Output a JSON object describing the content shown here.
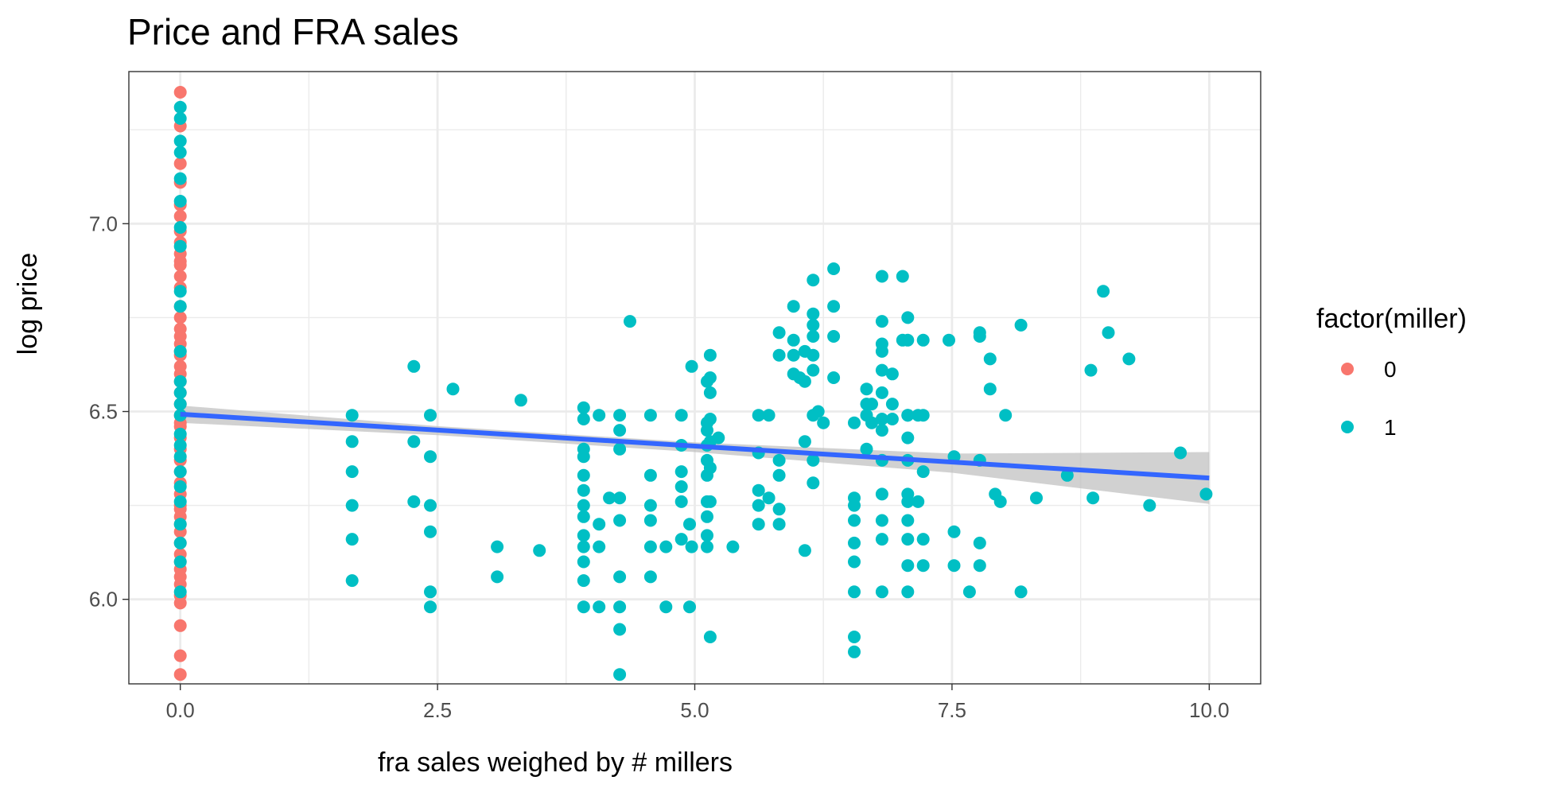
{
  "chart_data": {
    "type": "scatter",
    "title": "Price and FRA sales",
    "xlabel": "fra sales weighed by # millers",
    "ylabel": "log price",
    "xlim": [
      -0.5,
      10.5
    ],
    "ylim": [
      5.775,
      7.405
    ],
    "x_ticks": [
      0.0,
      2.5,
      5.0,
      7.5,
      10.0
    ],
    "x_tick_labels": [
      "0.0",
      "2.5",
      "5.0",
      "7.5",
      "10.0"
    ],
    "y_ticks": [
      6.0,
      6.5,
      7.0
    ],
    "y_tick_labels": [
      "6.0",
      "6.5",
      "7.0"
    ],
    "grid": true,
    "legend": {
      "title": "factor(miller)",
      "position": "right",
      "entries": [
        {
          "label": "0",
          "color": "#F8766D"
        },
        {
          "label": "1",
          "color": "#00BFC4"
        }
      ]
    },
    "colors": {
      "miller_0": "#F8766D",
      "miller_1": "#00BFC4",
      "fit_line": "#3366FF",
      "confidence_band": "#BEBEBE"
    },
    "series": [
      {
        "name": "0",
        "x": [
          0,
          0,
          0,
          0,
          0,
          0,
          0,
          0,
          0,
          0,
          0,
          0,
          0,
          0,
          0,
          0,
          0,
          0,
          0,
          0,
          0,
          0,
          0,
          0,
          0,
          0,
          0,
          0,
          0,
          0,
          0,
          0,
          0,
          0,
          0,
          0,
          0,
          0,
          0,
          0,
          0,
          0,
          0,
          0,
          0,
          0,
          0,
          0,
          0,
          0
        ],
        "y": [
          7.35,
          7.26,
          7.16,
          7.11,
          7.05,
          7.02,
          6.98,
          6.95,
          6.92,
          6.89,
          6.86,
          6.83,
          6.78,
          6.75,
          6.72,
          6.7,
          6.68,
          6.65,
          6.62,
          6.6,
          6.58,
          6.55,
          6.52,
          6.49,
          6.46,
          6.43,
          6.4,
          6.37,
          6.34,
          6.31,
          6.28,
          6.25,
          6.22,
          6.2,
          6.18,
          6.15,
          6.12,
          6.1,
          6.08,
          6.06,
          6.04,
          6.01,
          5.99,
          5.93,
          5.85,
          5.8,
          6.9,
          6.66,
          6.47,
          6.24
        ]
      },
      {
        "name": "1",
        "x": [
          0,
          0,
          0,
          0,
          0,
          0,
          0,
          0,
          0,
          0,
          0,
          0,
          0,
          0,
          0,
          0,
          0,
          0,
          0,
          0,
          0,
          0,
          0,
          0,
          0,
          1.67,
          1.67,
          1.67,
          1.67,
          1.67,
          1.67,
          2.27,
          2.27,
          2.27,
          2.43,
          2.43,
          2.43,
          2.43,
          2.43,
          2.43,
          2.65,
          3.08,
          3.08,
          3.31,
          3.49,
          3.92,
          3.92,
          3.92,
          3.92,
          3.92,
          3.92,
          3.92,
          3.92,
          3.92,
          3.92,
          3.92,
          3.92,
          3.92,
          4.07,
          4.07,
          4.07,
          4.07,
          4.17,
          4.27,
          4.27,
          4.27,
          4.27,
          4.27,
          4.27,
          4.27,
          4.27,
          4.27,
          4.37,
          4.57,
          4.57,
          4.57,
          4.57,
          4.57,
          4.57,
          4.72,
          4.72,
          4.87,
          4.87,
          4.87,
          4.87,
          4.87,
          4.87,
          4.95,
          4.95,
          4.97,
          4.97,
          5.12,
          5.12,
          5.12,
          5.12,
          5.12,
          5.12,
          5.12,
          5.12,
          5.12,
          5.12,
          5.15,
          5.15,
          5.15,
          5.15,
          5.15,
          5.15,
          5.15,
          5.15,
          5.23,
          5.37,
          5.62,
          5.62,
          5.62,
          5.62,
          5.62,
          5.72,
          5.72,
          5.82,
          5.82,
          5.82,
          5.82,
          5.82,
          5.82,
          5.96,
          5.96,
          5.96,
          5.96,
          6.02,
          6.07,
          6.07,
          6.07,
          6.07,
          6.15,
          6.15,
          6.15,
          6.15,
          6.15,
          6.15,
          6.15,
          6.15,
          6.15,
          6.2,
          6.25,
          6.35,
          6.35,
          6.35,
          6.35,
          6.55,
          6.55,
          6.55,
          6.55,
          6.55,
          6.55,
          6.55,
          6.55,
          6.55,
          6.67,
          6.67,
          6.67,
          6.67,
          6.72,
          6.72,
          6.82,
          6.82,
          6.82,
          6.82,
          6.82,
          6.82,
          6.82,
          6.82,
          6.82,
          6.82,
          6.82,
          6.82,
          6.82,
          6.92,
          6.92,
          6.92,
          7.02,
          7.02,
          7.07,
          7.07,
          7.07,
          7.07,
          7.07,
          7.07,
          7.07,
          7.07,
          7.07,
          7.07,
          7.07,
          7.07,
          7.17,
          7.17,
          7.22,
          7.22,
          7.22,
          7.22,
          7.22,
          7.47,
          7.52,
          7.52,
          7.52,
          7.67,
          7.77,
          7.77,
          7.77,
          7.77,
          7.77,
          7.87,
          7.87,
          7.92,
          7.97,
          8.02,
          8.17,
          8.17,
          8.32,
          8.62,
          8.85,
          8.87,
          8.97,
          9.02,
          9.22,
          9.42,
          9.72,
          9.97
        ],
        "y": [
          7.31,
          7.28,
          7.22,
          7.19,
          7.12,
          7.06,
          6.99,
          6.94,
          6.82,
          6.78,
          6.66,
          6.58,
          6.55,
          6.52,
          6.49,
          6.44,
          6.41,
          6.38,
          6.34,
          6.3,
          6.26,
          6.2,
          6.15,
          6.1,
          6.02,
          6.49,
          6.42,
          6.34,
          6.25,
          6.16,
          6.05,
          6.62,
          6.42,
          6.26,
          6.49,
          6.38,
          6.25,
          6.18,
          6.02,
          5.98,
          6.56,
          6.14,
          6.06,
          6.53,
          6.13,
          6.51,
          6.48,
          6.38,
          6.33,
          6.29,
          6.25,
          6.22,
          6.17,
          6.14,
          6.1,
          6.05,
          5.98,
          6.4,
          6.49,
          6.2,
          6.14,
          5.98,
          6.27,
          6.49,
          6.45,
          6.27,
          6.21,
          6.06,
          5.98,
          5.92,
          5.8,
          6.4,
          6.74,
          6.49,
          6.33,
          6.25,
          6.21,
          6.14,
          6.06,
          6.14,
          5.98,
          6.49,
          6.41,
          6.34,
          6.3,
          6.26,
          6.16,
          6.2,
          5.98,
          6.62,
          6.14,
          6.58,
          6.45,
          6.41,
          6.37,
          6.33,
          6.26,
          6.22,
          6.17,
          6.14,
          6.47,
          6.65,
          6.59,
          6.55,
          6.48,
          6.42,
          6.35,
          6.26,
          5.9,
          6.43,
          6.14,
          6.49,
          6.39,
          6.29,
          6.25,
          6.2,
          6.49,
          6.27,
          6.71,
          6.65,
          6.37,
          6.33,
          6.24,
          6.2,
          6.78,
          6.69,
          6.6,
          6.65,
          6.59,
          6.66,
          6.58,
          6.42,
          6.13,
          6.85,
          6.76,
          6.73,
          6.7,
          6.65,
          6.49,
          6.37,
          6.31,
          6.61,
          6.5,
          6.47,
          6.88,
          6.78,
          6.7,
          6.59,
          6.47,
          6.27,
          6.25,
          6.21,
          6.15,
          6.1,
          6.02,
          5.9,
          5.86,
          6.56,
          6.52,
          6.49,
          6.4,
          6.47,
          6.52,
          6.86,
          6.74,
          6.68,
          6.66,
          6.61,
          6.55,
          6.48,
          6.45,
          6.37,
          6.28,
          6.21,
          6.16,
          6.02,
          6.6,
          6.52,
          6.48,
          6.86,
          6.69,
          6.75,
          6.69,
          6.49,
          6.43,
          6.37,
          6.28,
          6.26,
          6.21,
          6.16,
          6.09,
          6.02,
          6.49,
          6.49,
          6.26,
          6.69,
          6.34,
          6.16,
          6.09,
          6.49,
          6.69,
          6.38,
          6.18,
          6.09,
          6.02,
          6.7,
          6.37,
          6.15,
          6.09,
          6.71,
          6.56,
          6.64,
          6.28,
          6.26,
          6.49,
          6.02,
          6.73,
          6.27,
          6.33,
          6.61,
          6.27,
          6.82,
          6.71,
          6.64,
          6.25,
          6.39,
          6.28
        ]
      }
    ],
    "fit_line": {
      "x": [
        0.0,
        10.0
      ],
      "y": [
        6.493,
        6.323
      ]
    },
    "confidence_band": {
      "x": [
        0.0,
        2.5,
        5.0,
        7.5,
        10.0
      ],
      "upper": [
        6.516,
        6.461,
        6.418,
        6.388,
        6.392
      ],
      "lower": [
        6.47,
        6.437,
        6.392,
        6.337,
        6.254
      ]
    }
  }
}
